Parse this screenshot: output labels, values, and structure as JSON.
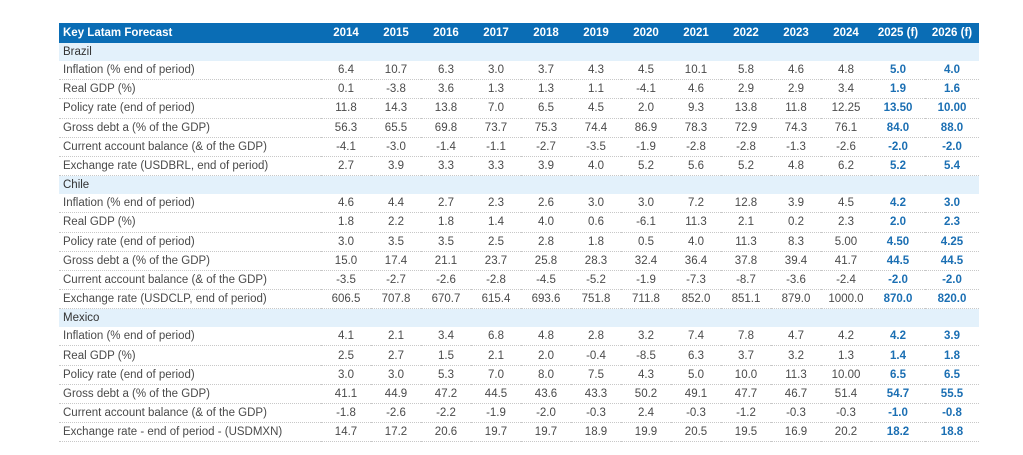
{
  "table": {
    "title": "Key Latam Forecast",
    "years": [
      "2014",
      "2015",
      "2016",
      "2017",
      "2018",
      "2019",
      "2020",
      "2021",
      "2022",
      "2023",
      "2024",
      "2025 (f)",
      "2026 (f)"
    ],
    "sections": [
      {
        "name": "Brazil",
        "rows": [
          {
            "label": "Inflation (% end of period)",
            "values": [
              "6.4",
              "10.7",
              "6.3",
              "3.0",
              "3.7",
              "4.3",
              "4.5",
              "10.1",
              "5.8",
              "4.6",
              "4.8",
              "5.0",
              "4.0"
            ]
          },
          {
            "label": "Real GDP (%)",
            "values": [
              "0.1",
              "-3.8",
              "3.6",
              "1.3",
              "1.3",
              "1.1",
              "-4.1",
              "4.6",
              "2.9",
              "2.9",
              "3.4",
              "1.9",
              "1.6"
            ]
          },
          {
            "label": "Policy rate (end of period)",
            "values": [
              "11.8",
              "14.3",
              "13.8",
              "7.0",
              "6.5",
              "4.5",
              "2.0",
              "9.3",
              "13.8",
              "11.8",
              "12.25",
              "13.50",
              "10.00"
            ]
          },
          {
            "label": "Gross debt a (% of the GDP)",
            "values": [
              "56.3",
              "65.5",
              "69.8",
              "73.7",
              "75.3",
              "74.4",
              "86.9",
              "78.3",
              "72.9",
              "74.3",
              "76.1",
              "84.0",
              "88.0"
            ]
          },
          {
            "label": "Current account balance (& of the GDP)",
            "values": [
              "-4.1",
              "-3.0",
              "-1.4",
              "-1.1",
              "-2.7",
              "-3.5",
              "-1.9",
              "-2.8",
              "-2.8",
              "-1.3",
              "-2.6",
              "-2.0",
              "-2.0"
            ]
          },
          {
            "label": "Exchange rate (USDBRL, end of period)",
            "values": [
              "2.7",
              "3.9",
              "3.3",
              "3.3",
              "3.9",
              "4.0",
              "5.2",
              "5.6",
              "5.2",
              "4.8",
              "6.2",
              "5.2",
              "5.4"
            ]
          }
        ]
      },
      {
        "name": "Chile",
        "rows": [
          {
            "label": "Inflation (% end of period)",
            "values": [
              "4.6",
              "4.4",
              "2.7",
              "2.3",
              "2.6",
              "3.0",
              "3.0",
              "7.2",
              "12.8",
              "3.9",
              "4.5",
              "4.2",
              "3.0"
            ]
          },
          {
            "label": "Real GDP (%)",
            "values": [
              "1.8",
              "2.2",
              "1.8",
              "1.4",
              "4.0",
              "0.6",
              "-6.1",
              "11.3",
              "2.1",
              "0.2",
              "2.3",
              "2.0",
              "2.3"
            ]
          },
          {
            "label": "Policy rate (end of period)",
            "values": [
              "3.0",
              "3.5",
              "3.5",
              "2.5",
              "2.8",
              "1.8",
              "0.5",
              "4.0",
              "11.3",
              "8.3",
              "5.00",
              "4.50",
              "4.25"
            ]
          },
          {
            "label": "Gross debt a (% of the GDP)",
            "values": [
              "15.0",
              "17.4",
              "21.1",
              "23.7",
              "25.8",
              "28.3",
              "32.4",
              "36.4",
              "37.8",
              "39.4",
              "41.7",
              "44.5",
              "44.5"
            ]
          },
          {
            "label": "Current account balance (& of the GDP)",
            "values": [
              "-3.5",
              "-2.7",
              "-2.6",
              "-2.8",
              "-4.5",
              "-5.2",
              "-1.9",
              "-7.3",
              "-8.7",
              "-3.6",
              "-2.4",
              "-2.0",
              "-2.0"
            ]
          },
          {
            "label": "Exchange rate (USDCLP, end of period)",
            "values": [
              "606.5",
              "707.8",
              "670.7",
              "615.4",
              "693.6",
              "751.8",
              "711.8",
              "852.0",
              "851.1",
              "879.0",
              "1000.0",
              "870.0",
              "820.0"
            ]
          }
        ]
      },
      {
        "name": "Mexico",
        "rows": [
          {
            "label": "Inflation (% end of period)",
            "values": [
              "4.1",
              "2.1",
              "3.4",
              "6.8",
              "4.8",
              "2.8",
              "3.2",
              "7.4",
              "7.8",
              "4.7",
              "4.2",
              "4.2",
              "3.9"
            ]
          },
          {
            "label": "Real GDP (%)",
            "values": [
              "2.5",
              "2.7",
              "1.5",
              "2.1",
              "2.0",
              "-0.4",
              "-8.5",
              "6.3",
              "3.7",
              "3.2",
              "1.3",
              "1.4",
              "1.8"
            ]
          },
          {
            "label": "Policy rate (end of period)",
            "values": [
              "3.0",
              "3.0",
              "5.3",
              "7.0",
              "8.0",
              "7.5",
              "4.3",
              "5.0",
              "10.0",
              "11.3",
              "10.00",
              "6.5",
              "6.5"
            ]
          },
          {
            "label": "Gross debt a (% of the GDP)",
            "values": [
              "41.1",
              "44.9",
              "47.2",
              "44.5",
              "43.6",
              "43.3",
              "50.2",
              "49.1",
              "47.7",
              "46.7",
              "51.4",
              "54.7",
              "55.5"
            ]
          },
          {
            "label": "Current account balance (& of the GDP)",
            "values": [
              "-1.8",
              "-2.6",
              "-2.2",
              "-1.9",
              "-2.0",
              "-0.3",
              "2.4",
              "-0.3",
              "-1.2",
              "-0.3",
              "-0.3",
              "-1.0",
              "-0.8"
            ]
          },
          {
            "label": "Exchange rate - end of period - (USDMXN)",
            "values": [
              "14.7",
              "17.2",
              "20.6",
              "19.7",
              "19.7",
              "18.9",
              "19.9",
              "20.5",
              "19.5",
              "16.9",
              "20.2",
              "18.2",
              "18.8"
            ]
          }
        ]
      }
    ]
  },
  "colors": {
    "header_bg": "#0a6db5",
    "section_bg": "#e3f1fb",
    "forecast_text": "#1b6fb3"
  }
}
